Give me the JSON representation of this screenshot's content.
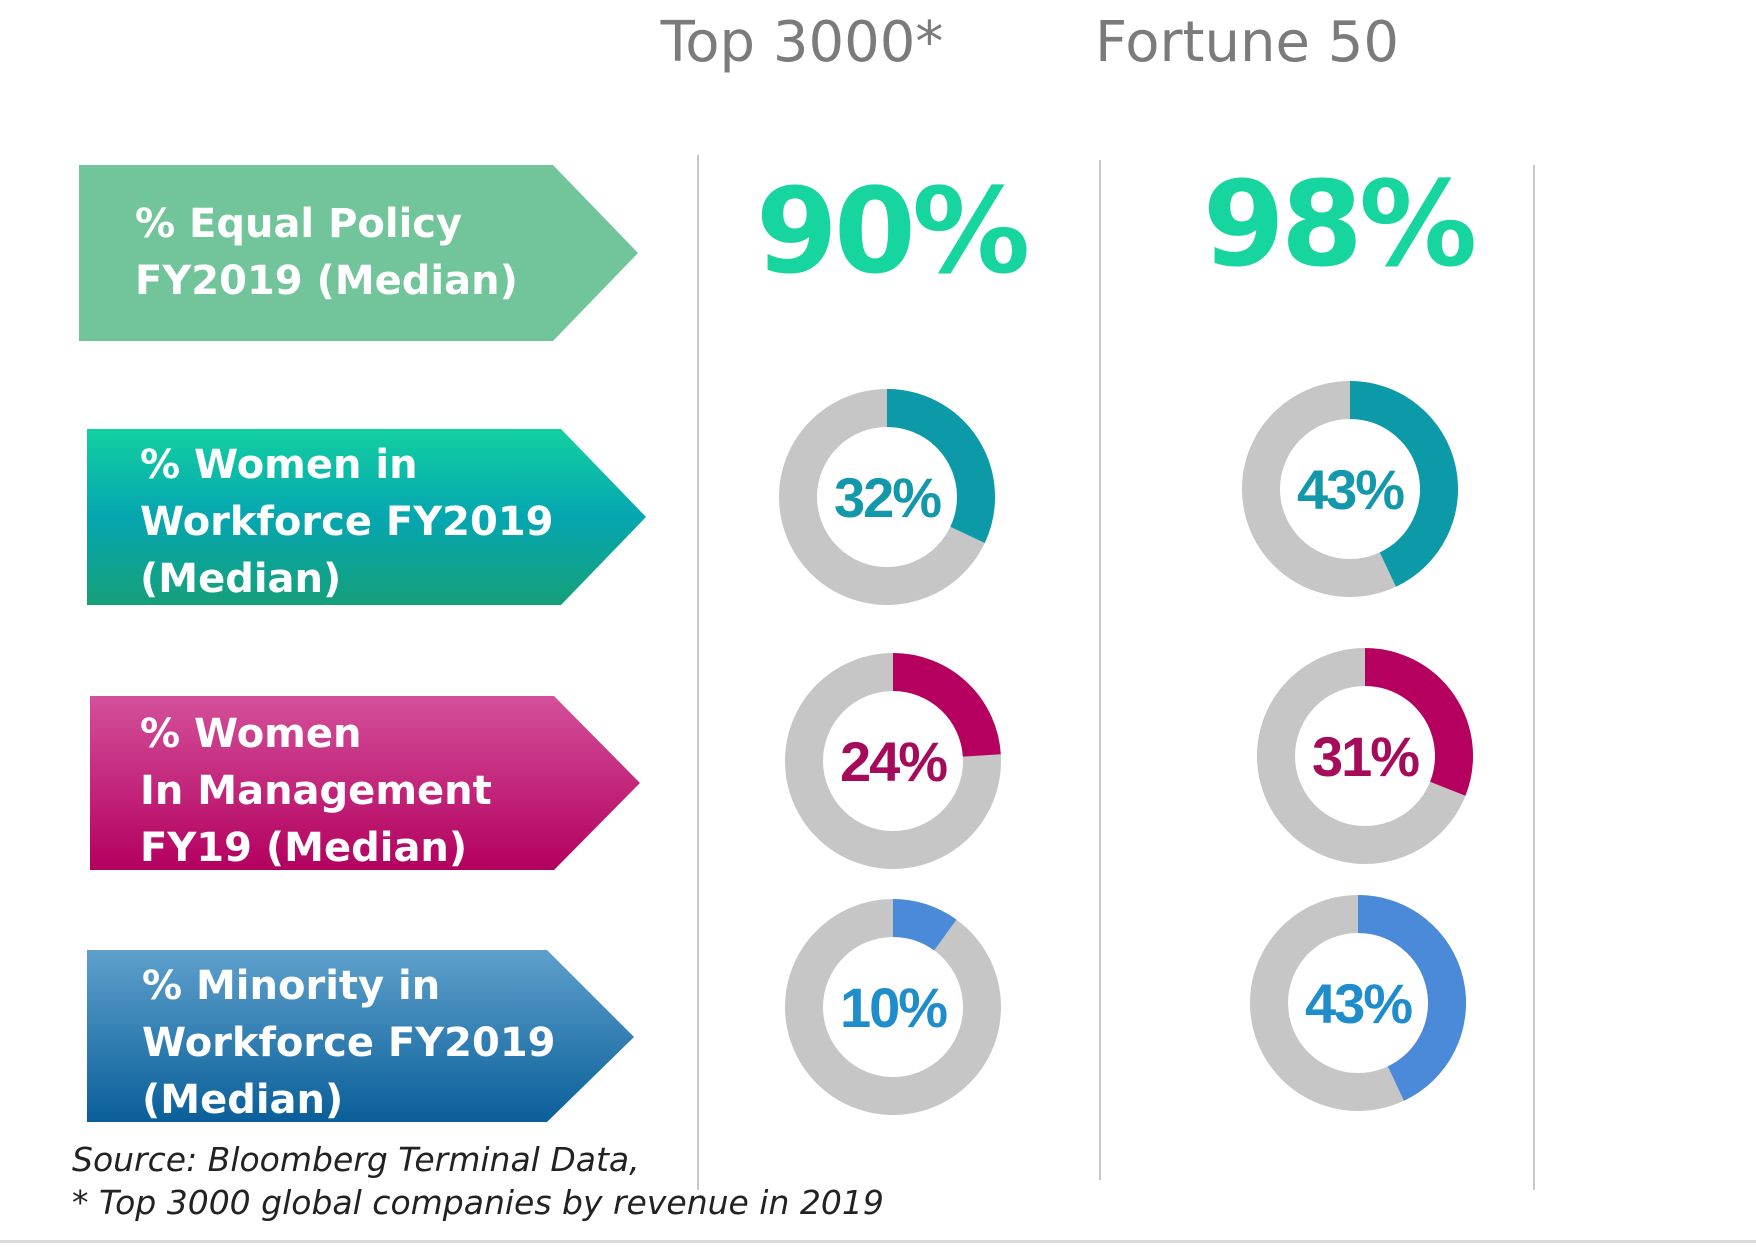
{
  "headers": {
    "top3000": "Top 3000*",
    "fortune50": "Fortune 50"
  },
  "chart_data": {
    "type": "donut",
    "columns": [
      "Top 3000*",
      "Fortune 50"
    ],
    "rows": [
      {
        "label_lines": [
          "% Equal Policy",
          "FY2019 (Median)"
        ],
        "display": "number",
        "values": [
          90,
          98
        ],
        "value_labels": [
          "90%",
          "98%"
        ],
        "accent": "#17d59e"
      },
      {
        "label_lines": [
          "% Women in",
          "Workforce FY2019",
          "(Median)"
        ],
        "display": "donut",
        "values": [
          32,
          43
        ],
        "value_labels": [
          "32%",
          "43%"
        ],
        "accent": "#0d9aa8",
        "text_color": "#1298aa"
      },
      {
        "label_lines": [
          "% Women",
          "In Management",
          "FY19 (Median)"
        ],
        "display": "donut",
        "values": [
          24,
          31
        ],
        "value_labels": [
          "24%",
          "31%"
        ],
        "accent": "#b6005f",
        "text_color": "#a60a5a"
      },
      {
        "label_lines": [
          "% Minority in",
          "Workforce FY2019",
          "(Median)"
        ],
        "display": "donut",
        "values": [
          10,
          43
        ],
        "value_labels": [
          "10%",
          "43%"
        ],
        "accent": "#4a8ad8",
        "text_color": "#1f8ccc"
      }
    ],
    "ring_color": "#c6c6c6"
  },
  "colors": {
    "arrow_green": "#72c59a",
    "arrow_teal_top": "#12d0a0",
    "arrow_teal_mid": "#05a6b0",
    "arrow_teal_bottom": "#15a07a",
    "arrow_pink_top": "#d4509a",
    "arrow_pink_bottom": "#b3005e",
    "arrow_blue_top": "#5ea0cc",
    "arrow_blue_bottom": "#0a5f9a"
  },
  "footnote": {
    "source": "Source: Bloomberg Terminal Data,",
    "note": "* Top 3000 global companies by revenue in 2019"
  }
}
